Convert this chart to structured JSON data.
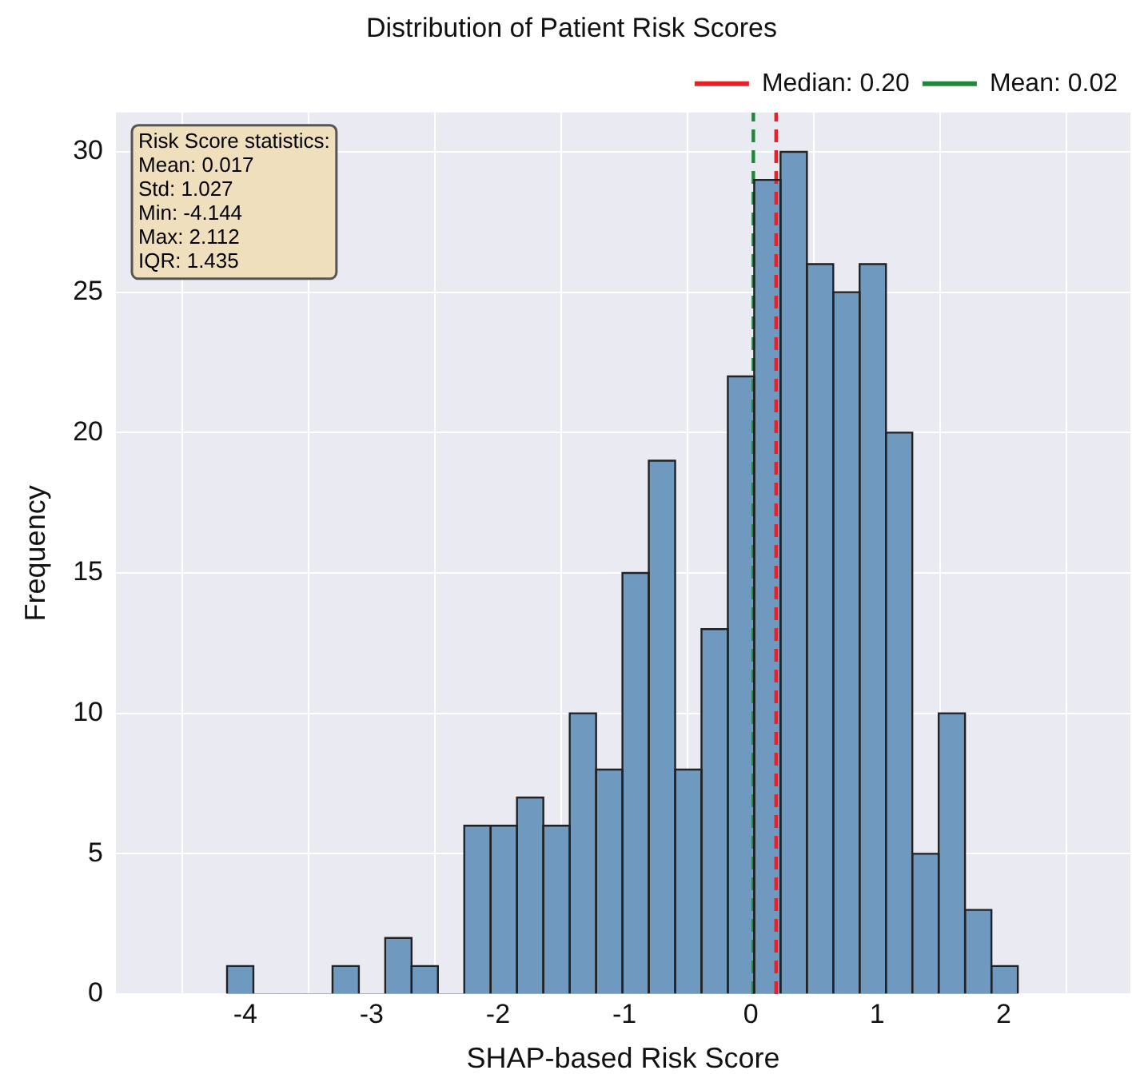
{
  "chart_data": {
    "type": "histogram",
    "title": "Distribution of Patient Risk Scores",
    "xlabel": "SHAP-based Risk Score",
    "ylabel": "Frequency",
    "bins": [
      -4.144,
      -3.936,
      -3.727,
      -3.518,
      -3.31,
      -3.101,
      -2.893,
      -2.684,
      -2.476,
      -2.267,
      -2.059,
      -1.85,
      -1.642,
      -1.433,
      -1.224,
      -1.016,
      -0.807,
      -0.599,
      -0.39,
      -0.182,
      0.027,
      0.235,
      0.444,
      0.652,
      0.861,
      1.069,
      1.278,
      1.486,
      1.695,
      1.904,
      2.112
    ],
    "values": [
      1,
      0,
      0,
      0,
      1,
      0,
      2,
      1,
      0,
      6,
      6,
      7,
      6,
      10,
      8,
      15,
      19,
      8,
      13,
      22,
      29,
      30,
      26,
      25,
      26,
      20,
      5,
      10,
      3,
      1
    ],
    "color": "#7099c0",
    "xlim": [
      -4.45,
      2.43
    ],
    "xticks": [
      -4,
      -3,
      -2,
      -1,
      0,
      1,
      2
    ],
    "ylim": [
      0,
      31.4
    ],
    "yticks": [
      0,
      5,
      10,
      15,
      20,
      25,
      30
    ],
    "ref_lines": [
      {
        "axis": "x",
        "value": 0.2,
        "label": "Median: 0.20",
        "color": "#e8202a",
        "line_style": "dashed"
      },
      {
        "axis": "x",
        "value": 0.02,
        "label": "Mean: 0.02",
        "color": "#21883a",
        "line_style": "dashed"
      }
    ],
    "annotations": [
      "Risk Score statistics:\nMean: 0.017\nStd: 1.027\nMin: -4.144\nMax: 2.112\nIQR: 1.435"
    ],
    "grid": true,
    "legend": "top right"
  }
}
